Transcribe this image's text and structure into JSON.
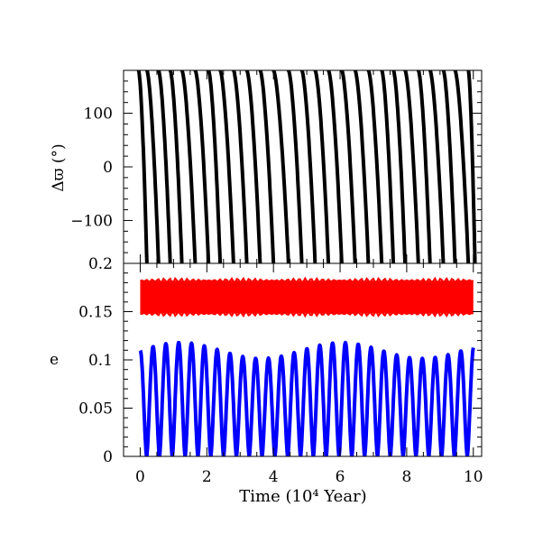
{
  "chart_data": [
    {
      "type": "scatter",
      "panel": "top",
      "xlabel": "",
      "ylabel": "Δϖ (°)",
      "xlim": [
        -0.5,
        10.25
      ],
      "ylim": [
        -180,
        180
      ],
      "x_ticks": [
        0,
        2,
        4,
        6,
        8,
        10
      ],
      "y_ticks": [
        -100,
        0,
        100
      ],
      "y_tick_labels": [
        "−100",
        "0",
        "100"
      ],
      "series": [
        {
          "color": "#000000",
          "description_values": "Δϖ circulates: decreasing from +180 to −180 repeatedly",
          "wrap_times": [
            0.2,
            0.55,
            0.9,
            1.25,
            1.65,
            2.05,
            2.4,
            2.8,
            3.2,
            3.6,
            4.0,
            4.45,
            4.85,
            5.25,
            5.65,
            6.05,
            6.45,
            6.85,
            7.25,
            7.6,
            7.95,
            8.35,
            8.7,
            9.1,
            9.45,
            9.85
          ]
        }
      ]
    },
    {
      "type": "line",
      "panel": "bottom",
      "xlabel": "Time (10⁴ Year)",
      "ylabel": "e",
      "xlim": [
        -0.5,
        10.25
      ],
      "ylim": [
        0,
        0.2
      ],
      "x_ticks": [
        0,
        2,
        4,
        6,
        8,
        10
      ],
      "x_tick_labels": [
        "0",
        "2",
        "4",
        "6",
        "8",
        "10"
      ],
      "y_ticks": [
        0,
        0.05,
        0.1,
        0.15,
        0.2
      ],
      "y_tick_labels": [
        "0",
        "0.05",
        "0.1",
        "0.15",
        "0.2"
      ],
      "series": [
        {
          "color": "#ff0000",
          "x_range": [
            0,
            10
          ],
          "e_min": 0.148,
          "e_max": 0.182
        },
        {
          "color": "#0000ff",
          "x_range": [
            0,
            10
          ],
          "e_min": 0.0,
          "e_max": 0.118,
          "period": 0.385
        }
      ]
    }
  ]
}
